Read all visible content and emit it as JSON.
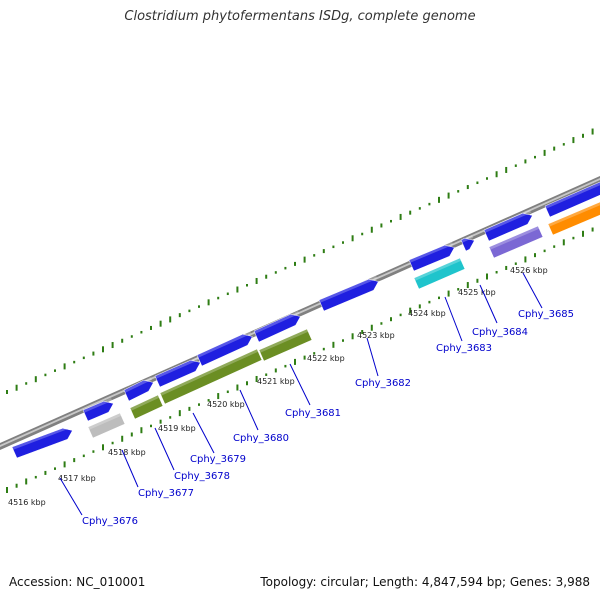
{
  "title": "Clostridium phytofermentans ISDg, complete genome",
  "footer": {
    "accession": "Accession: NC_010001",
    "summary": "Topology: circular; Length: 4,847,594 bp; Genes: 3,988"
  },
  "colors": {
    "backbone": "#808080",
    "gc_dots": "#2e7d14",
    "label": "#0000cc",
    "gene_blue": "#1f1fe0",
    "gene_grey": "#bdbdbd",
    "gene_olive": "#6b8e23",
    "gene_cyan": "#1fc4cc",
    "gene_purple": "#7b68d4",
    "gene_orange": "#ff8c00"
  },
  "ticks": [
    "4516 kbp",
    "4517 kbp",
    "4518 kbp",
    "4519 kbp",
    "4520 kbp",
    "4521 kbp",
    "4522 kbp",
    "4523 kbp",
    "4524 kbp",
    "4525 kbp",
    "4526 kbp"
  ],
  "gene_labels": [
    "Cphy_3676",
    "Cphy_3677",
    "Cphy_3678",
    "Cphy_3679",
    "Cphy_3680",
    "Cphy_3681",
    "Cphy_3682",
    "Cphy_3683",
    "Cphy_3684",
    "Cphy_3685"
  ]
}
